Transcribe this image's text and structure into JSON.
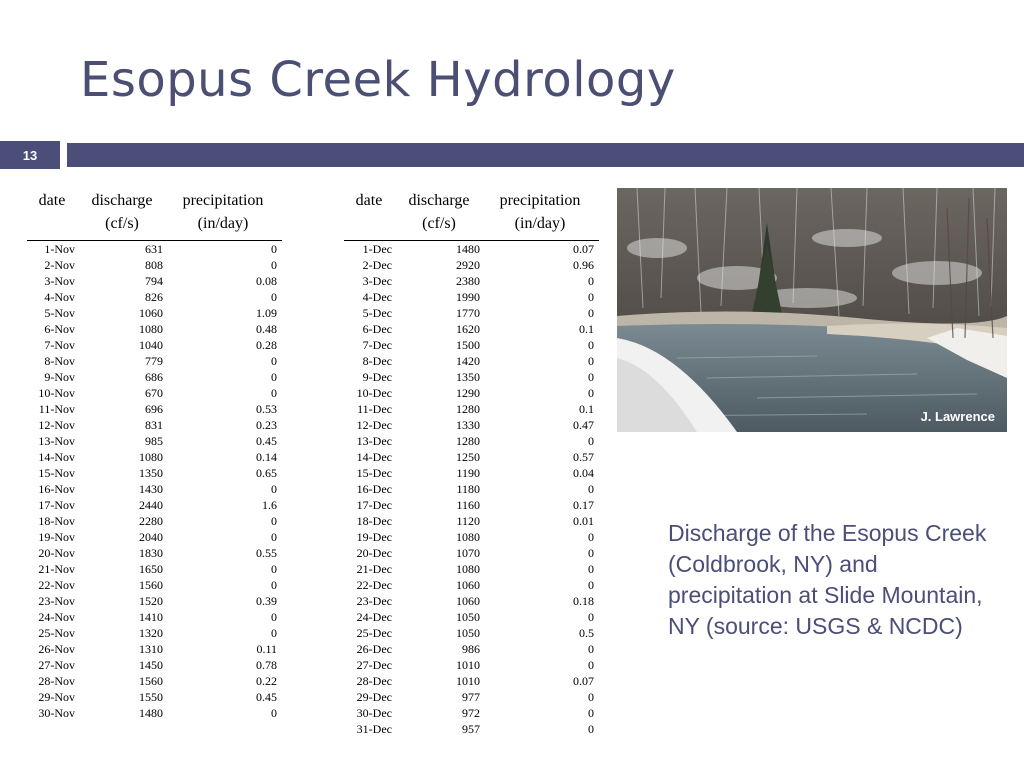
{
  "slide": {
    "title": "Esopus Creek Hydrology",
    "number": "13"
  },
  "headers": {
    "date": "date",
    "discharge": "discharge",
    "discharge_unit": "(cf/s)",
    "precipitation": "precipitation",
    "precipitation_unit": "(in/day)"
  },
  "november": [
    [
      "1-Nov",
      "631",
      "0"
    ],
    [
      "2-Nov",
      "808",
      "0"
    ],
    [
      "3-Nov",
      "794",
      "0.08"
    ],
    [
      "4-Nov",
      "826",
      "0"
    ],
    [
      "5-Nov",
      "1060",
      "1.09"
    ],
    [
      "6-Nov",
      "1080",
      "0.48"
    ],
    [
      "7-Nov",
      "1040",
      "0.28"
    ],
    [
      "8-Nov",
      "779",
      "0"
    ],
    [
      "9-Nov",
      "686",
      "0"
    ],
    [
      "10-Nov",
      "670",
      "0"
    ],
    [
      "11-Nov",
      "696",
      "0.53"
    ],
    [
      "12-Nov",
      "831",
      "0.23"
    ],
    [
      "13-Nov",
      "985",
      "0.45"
    ],
    [
      "14-Nov",
      "1080",
      "0.14"
    ],
    [
      "15-Nov",
      "1350",
      "0.65"
    ],
    [
      "16-Nov",
      "1430",
      "0"
    ],
    [
      "17-Nov",
      "2440",
      "1.6"
    ],
    [
      "18-Nov",
      "2280",
      "0"
    ],
    [
      "19-Nov",
      "2040",
      "0"
    ],
    [
      "20-Nov",
      "1830",
      "0.55"
    ],
    [
      "21-Nov",
      "1650",
      "0"
    ],
    [
      "22-Nov",
      "1560",
      "0"
    ],
    [
      "23-Nov",
      "1520",
      "0.39"
    ],
    [
      "24-Nov",
      "1410",
      "0"
    ],
    [
      "25-Nov",
      "1320",
      "0"
    ],
    [
      "26-Nov",
      "1310",
      "0.11"
    ],
    [
      "27-Nov",
      "1450",
      "0.78"
    ],
    [
      "28-Nov",
      "1560",
      "0.22"
    ],
    [
      "29-Nov",
      "1550",
      "0.45"
    ],
    [
      "30-Nov",
      "1480",
      "0"
    ]
  ],
  "december": [
    [
      "1-Dec",
      "1480",
      "0.07"
    ],
    [
      "2-Dec",
      "2920",
      "0.96"
    ],
    [
      "3-Dec",
      "2380",
      "0"
    ],
    [
      "4-Dec",
      "1990",
      "0"
    ],
    [
      "5-Dec",
      "1770",
      "0"
    ],
    [
      "6-Dec",
      "1620",
      "0.1"
    ],
    [
      "7-Dec",
      "1500",
      "0"
    ],
    [
      "8-Dec",
      "1420",
      "0"
    ],
    [
      "9-Dec",
      "1350",
      "0"
    ],
    [
      "10-Dec",
      "1290",
      "0"
    ],
    [
      "11-Dec",
      "1280",
      "0.1"
    ],
    [
      "12-Dec",
      "1330",
      "0.47"
    ],
    [
      "13-Dec",
      "1280",
      "0"
    ],
    [
      "14-Dec",
      "1250",
      "0.57"
    ],
    [
      "15-Dec",
      "1190",
      "0.04"
    ],
    [
      "16-Dec",
      "1180",
      "0"
    ],
    [
      "17-Dec",
      "1160",
      "0.17"
    ],
    [
      "18-Dec",
      "1120",
      "0.01"
    ],
    [
      "19-Dec",
      "1080",
      "0"
    ],
    [
      "20-Dec",
      "1070",
      "0"
    ],
    [
      "21-Dec",
      "1080",
      "0"
    ],
    [
      "22-Dec",
      "1060",
      "0"
    ],
    [
      "23-Dec",
      "1060",
      "0.18"
    ],
    [
      "24-Dec",
      "1050",
      "0"
    ],
    [
      "25-Dec",
      "1050",
      "0.5"
    ],
    [
      "26-Dec",
      "986",
      "0"
    ],
    [
      "27-Dec",
      "1010",
      "0"
    ],
    [
      "28-Dec",
      "1010",
      "0.07"
    ],
    [
      "29-Dec",
      "977",
      "0"
    ],
    [
      "30-Dec",
      "972",
      "0"
    ],
    [
      "31-Dec",
      "957",
      "0"
    ]
  ],
  "photo": {
    "credit": "J. Lawrence"
  },
  "caption": "Discharge of the Esopus Creek (Coldbrook, NY) and precipitation at Slide Mountain, NY (source: USGS & NCDC)",
  "colors": {
    "accent": "#4a4e78",
    "title": "#4b4f73"
  }
}
